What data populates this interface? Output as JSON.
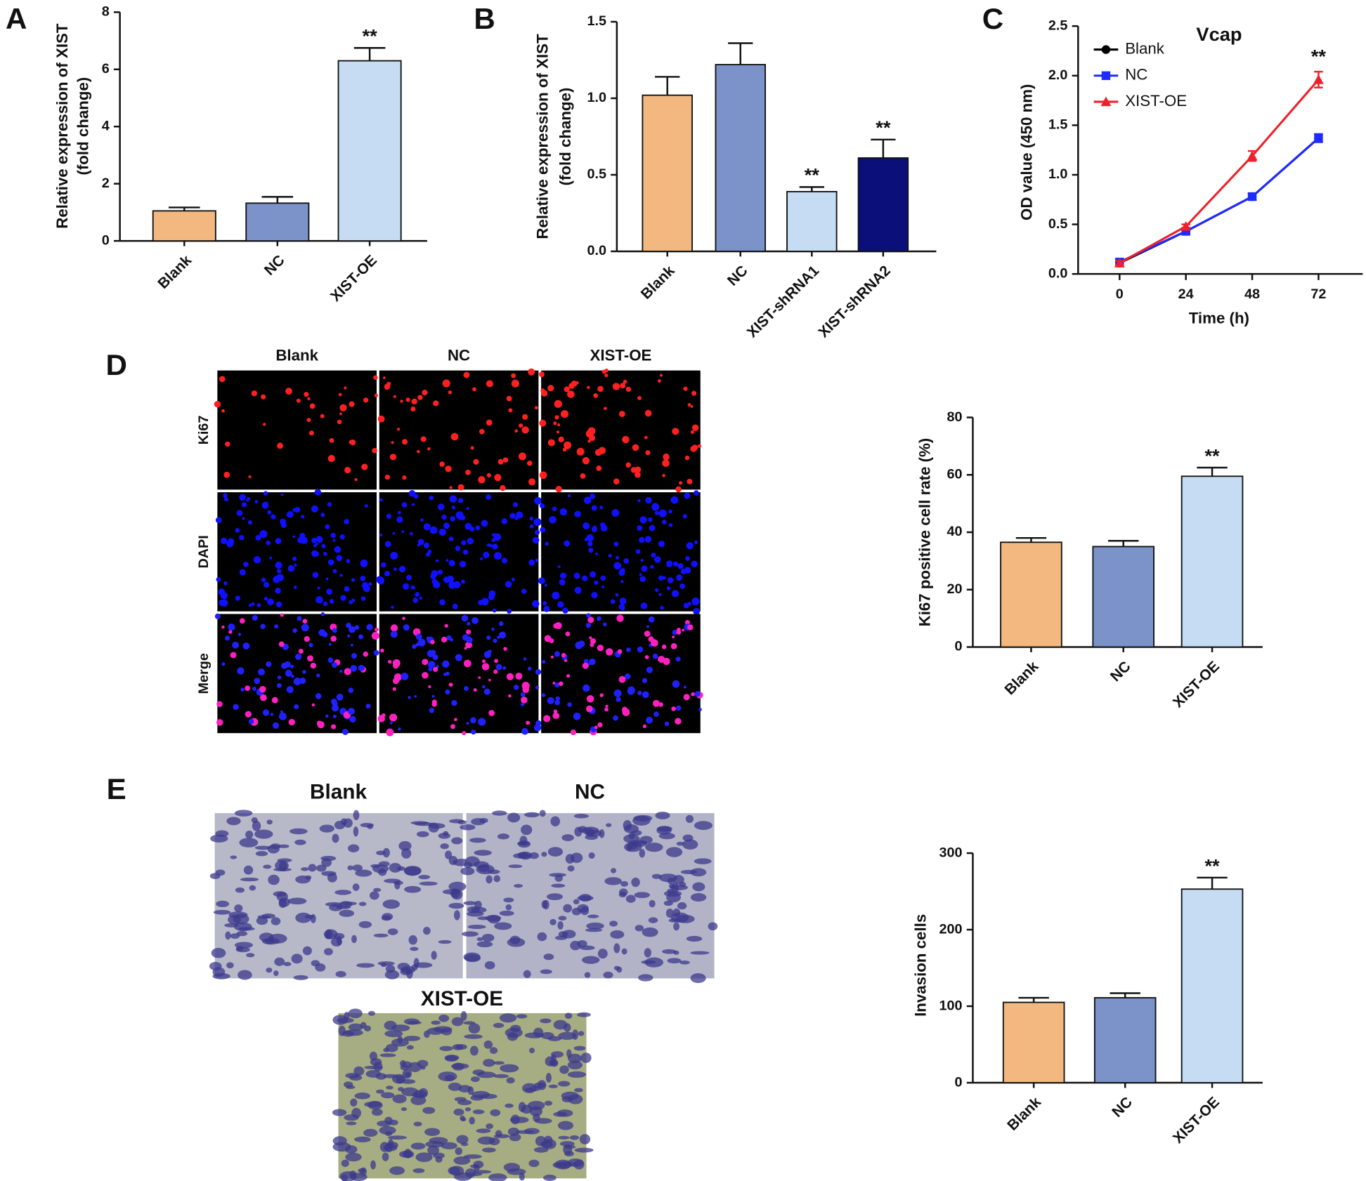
{
  "chart_data": [
    {
      "type": "bar",
      "panel": "A",
      "ylabel": [
        "Relative expression of XIST",
        "(fold change)"
      ],
      "categories": [
        "Blank",
        "NC",
        "XIST-OE"
      ],
      "values": [
        1.05,
        1.32,
        6.3
      ],
      "errors": [
        0.12,
        0.22,
        0.45
      ],
      "colors": [
        "#f2b880",
        "#7b93c9",
        "#c6dcf3"
      ],
      "annotations": [
        {
          "index": 2,
          "text": "**"
        }
      ],
      "ylim": [
        0,
        8
      ],
      "yticks": [
        0,
        2,
        4,
        6,
        8
      ]
    },
    {
      "type": "bar",
      "panel": "B",
      "ylabel": [
        "Relative expression of XIST",
        "(fold change)"
      ],
      "categories": [
        "Blank",
        "NC",
        "XIST-shRNA1",
        "XIST-shRNA2"
      ],
      "values": [
        1.02,
        1.22,
        0.39,
        0.61
      ],
      "errors": [
        0.12,
        0.14,
        0.03,
        0.12
      ],
      "colors": [
        "#f2b880",
        "#7b93c9",
        "#c6dcf3",
        "#0b0f7a"
      ],
      "annotations": [
        {
          "index": 2,
          "text": "**"
        },
        {
          "index": 3,
          "text": "**"
        }
      ],
      "ylim": [
        0,
        1.5
      ],
      "yticks": [
        {
          "value": 0,
          "label": "0.0"
        },
        0.5,
        {
          "value": 1,
          "label": "1.0"
        },
        1.5
      ]
    },
    {
      "type": "line",
      "panel": "C",
      "title": "Vcap",
      "xlabel": "Time (h)",
      "ylabel": [
        "OD value (450 nm)"
      ],
      "x": [
        0,
        24,
        48,
        72
      ],
      "series": [
        {
          "name": "Blank",
          "color": "#000000",
          "marker": "circle",
          "values": [
            0.11,
            0.43,
            0.78,
            1.37
          ],
          "errors": [
            0.01,
            0.02,
            0.03,
            0.04
          ]
        },
        {
          "name": "NC",
          "color": "#1f2bff",
          "marker": "square",
          "values": [
            0.12,
            0.43,
            0.78,
            1.37
          ],
          "errors": [
            0.01,
            0.02,
            0.03,
            0.04
          ]
        },
        {
          "name": "XIST-OE",
          "color": "#f0202a",
          "marker": "triangle",
          "values": [
            0.11,
            0.48,
            1.19,
            1.96
          ],
          "errors": [
            0.02,
            0.02,
            0.05,
            0.08
          ]
        }
      ],
      "annotations": [
        {
          "series": 2,
          "index": 3,
          "text": "**"
        }
      ],
      "legend": "upper left",
      "xlim": [
        -15,
        88
      ],
      "xticks": [
        0,
        24,
        48,
        72
      ],
      "ylim": [
        0,
        2.5
      ],
      "yticks": [
        {
          "value": 0,
          "label": "0.0"
        },
        0.5,
        {
          "value": 1,
          "label": "1.0"
        },
        1.5,
        {
          "value": 2,
          "label": "2.0"
        },
        2.5
      ]
    },
    {
      "type": "bar",
      "panel": "D",
      "ylabel": [
        "Ki67 positive cell rate (%)"
      ],
      "categories": [
        "Blank",
        "NC",
        "XIST-OE"
      ],
      "values": [
        36.5,
        35,
        59.5
      ],
      "errors": [
        1.5,
        2,
        3
      ],
      "colors": [
        "#f2b880",
        "#7b93c9",
        "#c6dcf3"
      ],
      "annotations": [
        {
          "index": 2,
          "text": "**"
        }
      ],
      "ylim": [
        0,
        80
      ],
      "yticks": [
        0,
        20,
        40,
        60,
        80
      ]
    },
    {
      "type": "bar",
      "panel": "E",
      "ylabel": [
        "Invasion cells"
      ],
      "categories": [
        "Blank",
        "NC",
        "XIST-OE"
      ],
      "values": [
        105,
        111,
        253
      ],
      "errors": [
        6,
        6,
        15
      ],
      "colors": [
        "#f2b880",
        "#7b93c9",
        "#c6dcf3"
      ],
      "annotations": [
        {
          "index": 2,
          "text": "**"
        }
      ],
      "ylim": [
        0,
        300
      ],
      "yticks": [
        0,
        100,
        200,
        300
      ]
    }
  ],
  "images": {
    "D": {
      "columns": [
        "Blank",
        "NC",
        "XIST-OE"
      ],
      "rows": [
        "Ki67",
        "DAPI",
        "Merge"
      ]
    },
    "E": {
      "panels": [
        "Blank",
        "NC",
        "XIST-OE"
      ]
    }
  }
}
